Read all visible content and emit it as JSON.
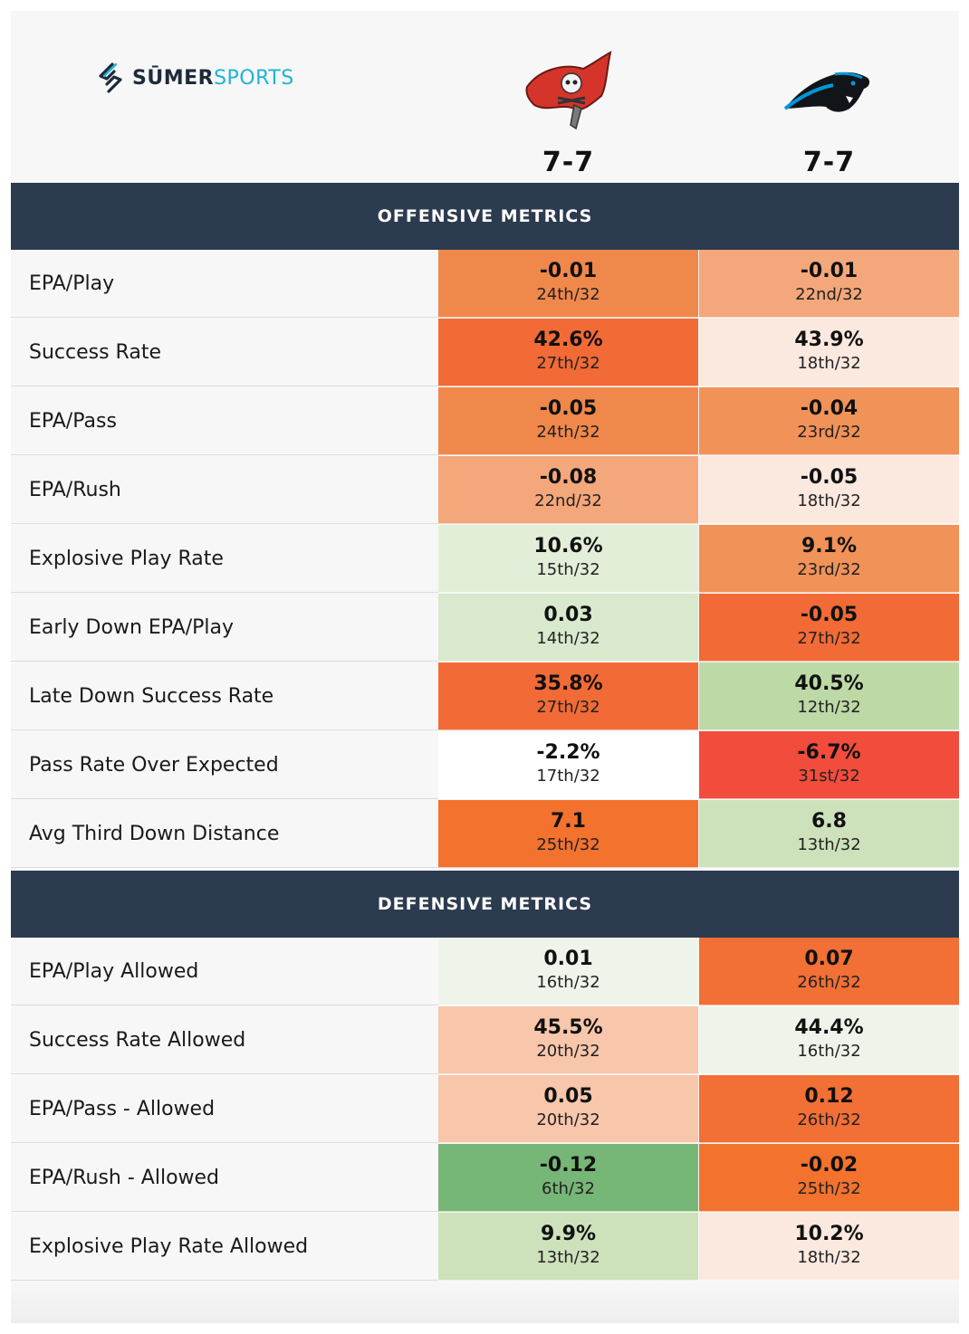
{
  "brand": {
    "part1": "SŪMER",
    "part2": "SPORTS"
  },
  "teams": [
    {
      "name": "Tampa Bay Buccaneers",
      "record": "7-7"
    },
    {
      "name": "Carolina Panthers",
      "record": "7-7"
    }
  ],
  "sections": {
    "offense_title": "OFFENSIVE METRICS",
    "defense_title": "DEFENSIVE METRICS"
  },
  "offense": [
    {
      "label": "EPA/Play",
      "a": {
        "value": "-0.01",
        "rank": "24th/32",
        "color": "#f0884c"
      },
      "b": {
        "value": "-0.01",
        "rank": "22nd/32",
        "color": "#f4a77a"
      }
    },
    {
      "label": "Success Rate",
      "a": {
        "value": "42.6%",
        "rank": "27th/32",
        "color": "#f26a35"
      },
      "b": {
        "value": "43.9%",
        "rank": "18th/32",
        "color": "#fbe8de"
      }
    },
    {
      "label": "EPA/Pass",
      "a": {
        "value": "-0.05",
        "rank": "24th/32",
        "color": "#f0884c"
      },
      "b": {
        "value": "-0.04",
        "rank": "23rd/32",
        "color": "#f19258"
      }
    },
    {
      "label": "EPA/Rush",
      "a": {
        "value": "-0.08",
        "rank": "22nd/32",
        "color": "#f4a77a"
      },
      "b": {
        "value": "-0.05",
        "rank": "18th/32",
        "color": "#fbe8de"
      }
    },
    {
      "label": "Explosive Play Rate",
      "a": {
        "value": "10.6%",
        "rank": "15th/32",
        "color": "#e3eed9"
      },
      "b": {
        "value": "9.1%",
        "rank": "23rd/32",
        "color": "#f19258"
      }
    },
    {
      "label": "Early Down EPA/Play",
      "a": {
        "value": "0.03",
        "rank": "14th/32",
        "color": "#d9e9cd"
      },
      "b": {
        "value": "-0.05",
        "rank": "27th/32",
        "color": "#f26a35"
      }
    },
    {
      "label": "Late Down Success Rate",
      "a": {
        "value": "35.8%",
        "rank": "27th/32",
        "color": "#f26a35"
      },
      "b": {
        "value": "40.5%",
        "rank": "12th/32",
        "color": "#bcd9a6"
      }
    },
    {
      "label": "Pass Rate Over Expected",
      "a": {
        "value": "-2.2%",
        "rank": "17th/32",
        "color": "#ffffff"
      },
      "b": {
        "value": "-6.7%",
        "rank": "31st/32",
        "color": "#f24c3c"
      }
    },
    {
      "label": "Avg Third Down Distance",
      "a": {
        "value": "7.1",
        "rank": "25th/32",
        "color": "#f2722e"
      },
      "b": {
        "value": "6.8",
        "rank": "13th/32",
        "color": "#cde2bb"
      }
    }
  ],
  "defense": [
    {
      "label": "EPA/Play Allowed",
      "a": {
        "value": "0.01",
        "rank": "16th/32",
        "color": "#eff4ea"
      },
      "b": {
        "value": "0.07",
        "rank": "26th/32",
        "color": "#f26f35"
      }
    },
    {
      "label": "Success Rate Allowed",
      "a": {
        "value": "45.5%",
        "rank": "20th/32",
        "color": "#f7c6ab"
      },
      "b": {
        "value": "44.4%",
        "rank": "16th/32",
        "color": "#eff4ea"
      }
    },
    {
      "label": "EPA/Pass - Allowed",
      "a": {
        "value": "0.05",
        "rank": "20th/32",
        "color": "#f7c6ab"
      },
      "b": {
        "value": "0.12",
        "rank": "26th/32",
        "color": "#f26f35"
      }
    },
    {
      "label": "EPA/Rush - Allowed",
      "a": {
        "value": "-0.12",
        "rank": "6th/32",
        "color": "#76b677"
      },
      "b": {
        "value": "-0.02",
        "rank": "25th/32",
        "color": "#f2722e"
      }
    },
    {
      "label": "Explosive Play Rate Allowed",
      "a": {
        "value": "9.9%",
        "rank": "13th/32",
        "color": "#cde2bb"
      },
      "b": {
        "value": "10.2%",
        "rank": "18th/32",
        "color": "#fbe8de"
      }
    }
  ]
}
